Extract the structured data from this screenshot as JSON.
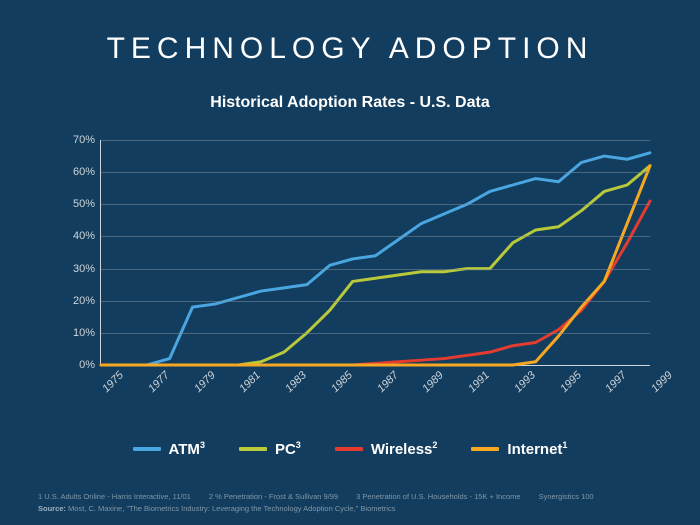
{
  "title": "TECHNOLOGY ADOPTION",
  "chart": {
    "type": "line",
    "title": "Historical Adoption Rates - U.S. Data",
    "background_color": "#133d5e",
    "grid_color": "#7a8a95",
    "axis_color": "#cfd5d9",
    "tick_fontsize": 11,
    "title_fontsize": 16,
    "line_width": 3,
    "ylim": [
      0,
      70
    ],
    "ytick_step": 10,
    "ytick_suffix": "%",
    "xlim": [
      1975,
      1999
    ],
    "xtick_step": 2,
    "xticks": [
      1975,
      1977,
      1979,
      1981,
      1983,
      1985,
      1987,
      1989,
      1991,
      1993,
      1995,
      1997,
      1999
    ],
    "series": [
      {
        "name": "ATM",
        "super": "3",
        "color": "#4aa6e0",
        "x": [
          1975,
          1976,
          1977,
          1978,
          1979,
          1980,
          1981,
          1982,
          1983,
          1984,
          1985,
          1986,
          1987,
          1988,
          1989,
          1990,
          1991,
          1992,
          1993,
          1994,
          1995,
          1996,
          1997,
          1998,
          1999
        ],
        "y": [
          0,
          0,
          0,
          2,
          18,
          19,
          21,
          23,
          24,
          25,
          31,
          33,
          34,
          39,
          44,
          47,
          50,
          54,
          56,
          58,
          57,
          63,
          65,
          64,
          66
        ]
      },
      {
        "name": "PC",
        "super": "3",
        "color": "#b8c93a",
        "x": [
          1975,
          1976,
          1977,
          1978,
          1979,
          1980,
          1981,
          1982,
          1983,
          1984,
          1985,
          1986,
          1987,
          1988,
          1989,
          1990,
          1991,
          1992,
          1993,
          1994,
          1995,
          1996,
          1997,
          1998,
          1999
        ],
        "y": [
          0,
          0,
          0,
          0,
          0,
          0,
          0,
          1,
          4,
          10,
          17,
          26,
          27,
          28,
          29,
          29,
          30,
          30,
          38,
          42,
          43,
          48,
          54,
          56,
          62
        ]
      },
      {
        "name": "Wireless",
        "super": "2",
        "color": "#e33b2f",
        "x": [
          1975,
          1976,
          1977,
          1978,
          1979,
          1980,
          1981,
          1982,
          1983,
          1984,
          1985,
          1986,
          1987,
          1988,
          1989,
          1990,
          1991,
          1992,
          1993,
          1994,
          1995,
          1996,
          1997,
          1998,
          1999
        ],
        "y": [
          0,
          0,
          0,
          0,
          0,
          0,
          0,
          0,
          0,
          0,
          0,
          0,
          0.5,
          1,
          1.5,
          2,
          3,
          4,
          6,
          7,
          11,
          17,
          26,
          38,
          51
        ]
      },
      {
        "name": "Internet",
        "super": "1",
        "color": "#f7a823",
        "x": [
          1975,
          1976,
          1977,
          1978,
          1979,
          1980,
          1981,
          1982,
          1983,
          1984,
          1985,
          1986,
          1987,
          1988,
          1989,
          1990,
          1991,
          1992,
          1993,
          1994,
          1995,
          1996,
          1997,
          1998,
          1999
        ],
        "y": [
          0,
          0,
          0,
          0,
          0,
          0,
          0,
          0,
          0,
          0,
          0,
          0,
          0,
          0,
          0,
          0,
          0,
          0,
          0,
          1,
          9,
          18,
          26,
          44,
          62
        ]
      }
    ]
  },
  "footnotes": {
    "n1": "1 U.S. Adults Online - Harris Interactive, 11/01",
    "n2": "2 % Penetration - Frost & Sullivan 9/99",
    "n3": "3 Penetration of U.S. Households - 15K + Income",
    "n4": "Synergistics 100",
    "source_label": "Source:",
    "source_text": " Most, C. Maxine, \"The Biometrics Industry: Leveraging the Technology Adoption Cycle,\" Biometrics"
  }
}
